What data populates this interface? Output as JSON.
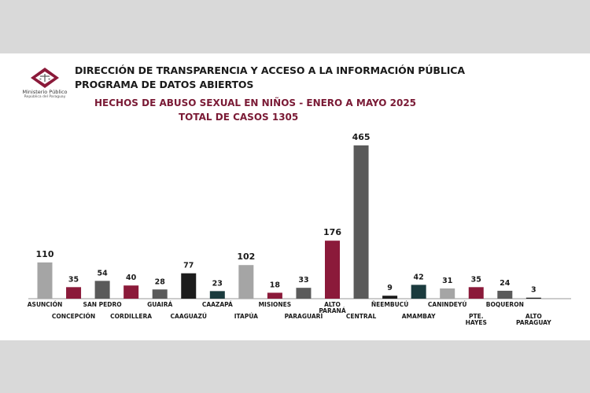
{
  "header": {
    "logo_name": "Ministerio Público",
    "logo_sub": "República del Paraguay",
    "org_line1": "DIRECCIÓN DE TRANSPARENCIA Y ACCESO A LA INFORMACIÓN PÚBLICA",
    "org_line2": "PROGRAMA DE DATOS ABIERTOS"
  },
  "colors": {
    "gray": "#a5a5a5",
    "maroon": "#8b1a3a",
    "darkgray": "#5a5a5a",
    "black": "#1c1c1c",
    "teal": "#1b3b3e",
    "title": "#7a1a35"
  },
  "chart_data": {
    "type": "bar",
    "title": "HECHOS DE ABUSO SEXUAL EN NIÑOS - ENERO A MAYO 2025",
    "subtitle": "TOTAL DE CASOS 1305",
    "xlabel": "",
    "ylabel": "",
    "ylim": [
      0,
      465
    ],
    "grid": false,
    "legend": "none",
    "categories": [
      "ASUNCIÓN",
      "CONCEPCIÓN",
      "SAN PEDRO",
      "CORDILLERA",
      "GUAIRÁ",
      "CAAGUAZÚ",
      "CAAZAPÁ",
      "ITAPÚA",
      "MISIONES",
      "PARAGUARÍ",
      "ALTO PARANÁ",
      "CENTRAL",
      "ÑEEMBUCÚ",
      "AMAMBAY",
      "CANINDEYÚ",
      "PTE. HAYES",
      "BOQUERON",
      "ALTO PARAGUAY"
    ],
    "values": [
      110,
      35,
      54,
      40,
      28,
      77,
      23,
      102,
      18,
      33,
      176,
      465,
      9,
      42,
      31,
      35,
      24,
      3
    ],
    "bar_colors": [
      "gray",
      "maroon",
      "darkgray",
      "maroon",
      "darkgray",
      "black",
      "teal",
      "gray",
      "maroon",
      "darkgray",
      "maroon",
      "darkgray",
      "black",
      "teal",
      "gray",
      "maroon",
      "darkgray",
      "black"
    ]
  }
}
